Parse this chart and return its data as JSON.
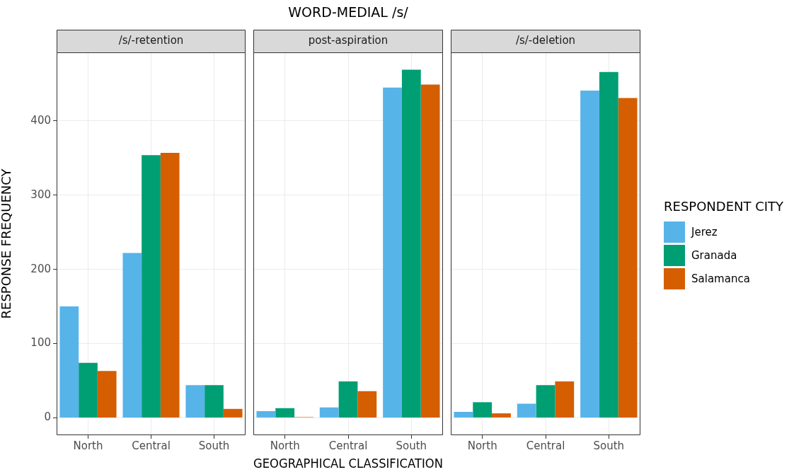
{
  "chart_data": [
    {
      "type": "bar",
      "subtitle": "/s/-retention",
      "ylabel": "RESPONSE FREQUENCY",
      "categories": [
        "North",
        "Central",
        "South"
      ],
      "series": [
        {
          "color": "#56b4e9",
          "values": [
            150,
            222,
            44
          ]
        },
        {
          "color": "#009e73",
          "values": [
            74,
            354,
            44
          ]
        },
        {
          "color": "#d55e00",
          "values": [
            63,
            357,
            12
          ]
        }
      ],
      "ylim": [
        -23.45,
        492.45
      ],
      "yticks": [
        0,
        100,
        200,
        300,
        400
      ],
      "grid": true,
      "legend": false
    },
    {
      "type": "bar",
      "title": "WORD-MEDIAL /s/",
      "subtitle": "post-aspiration",
      "xlabel": "GEOGRAPHICAL CLASSIFICATION",
      "categories": [
        "North",
        "Central",
        "South"
      ],
      "series": [
        {
          "color": "#56b4e9",
          "values": [
            9,
            14,
            445
          ]
        },
        {
          "color": "#009e73",
          "values": [
            13,
            49,
            469
          ]
        },
        {
          "color": "#d55e00",
          "values": [
            1,
            36,
            449
          ]
        }
      ],
      "ylim": [
        -23.45,
        492.45
      ],
      "yticks": [
        0,
        100,
        200,
        300,
        400
      ],
      "tick_labels": "x",
      "grid": true,
      "legend": false
    },
    {
      "type": "bar",
      "subtitle": "/s/-deletion",
      "legend_title": "RESPONDENT CITY",
      "categories": [
        "North",
        "Central",
        "South"
      ],
      "series": [
        {
          "name": "Jerez",
          "color": "#56b4e9",
          "values": [
            8,
            19,
            441
          ]
        },
        {
          "name": "Granada",
          "color": "#009e73",
          "values": [
            21,
            44,
            466
          ]
        },
        {
          "name": "Salamanca",
          "color": "#d55e00",
          "values": [
            6,
            49,
            431
          ]
        }
      ],
      "ylim": [
        -23.45,
        492.45
      ],
      "yticks": [
        0,
        100,
        200,
        300,
        400
      ],
      "tick_labels": "x",
      "grid": true,
      "legend": "right"
    }
  ]
}
